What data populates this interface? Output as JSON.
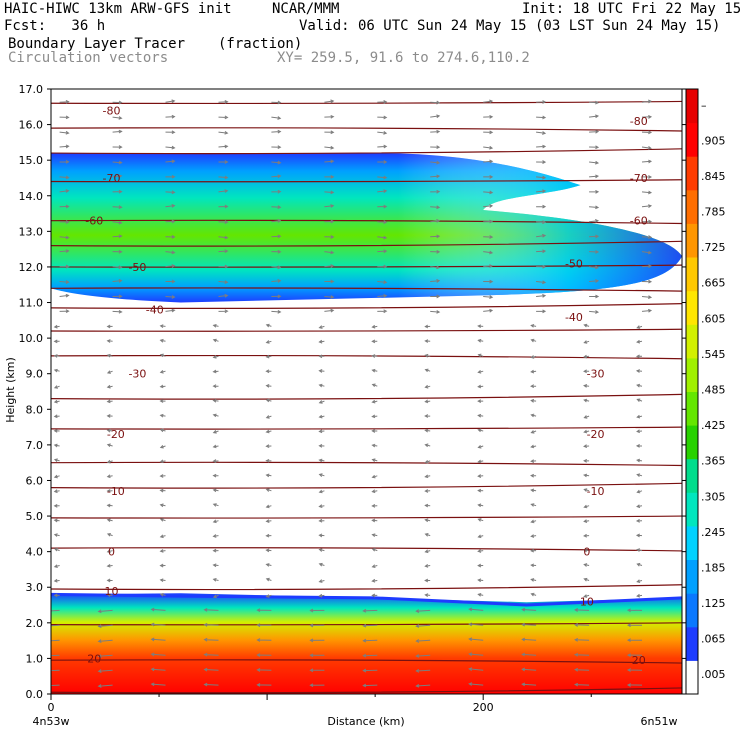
{
  "header": {
    "model": "HAIC-HIWC 13km ARW-GFS init",
    "org": "NCAR/MMM",
    "init": "Init: 18 UTC Fri 22 May 15",
    "fcst": "Fcst:   36 h",
    "valid": "Valid: 06 UTC Sun 24 May 15 (03 LST Sun 24 May 15)",
    "field": "Boundary Layer Tracer",
    "units": "(fraction)",
    "field2": "Circulation vectors",
    "xy": "XY= 259.5, 91.6 to 274.6,110.2"
  },
  "chart_data": {
    "type": "heatmap",
    "title": "Boundary Layer Tracer",
    "units": "(fraction)",
    "xlabel": "Distance (km)",
    "ylabel": "Height (km)",
    "xlim": [
      0,
      292
    ],
    "ylim": [
      0,
      17
    ],
    "x_ticks": [
      {
        "value": 0,
        "label": "0"
      },
      {
        "value": 200,
        "label": "200"
      }
    ],
    "x_end_labels": {
      "left": "4n53w",
      "right": "6n51w"
    },
    "y_ticks": [
      "0.0",
      "1.0",
      "2.0",
      "3.0",
      "4.0",
      "5.0",
      "6.0",
      "7.0",
      "8.0",
      "9.0",
      "10.0",
      "11.0",
      "12.0",
      "13.0",
      "14.0",
      "15.0",
      "16.0",
      "17.0"
    ],
    "colorbar": {
      "labels": [
        ".005",
        ".065",
        ".125",
        ".185",
        ".245",
        ".305",
        ".365",
        ".425",
        ".485",
        ".545",
        ".605",
        ".665",
        ".725",
        ".785",
        ".845",
        ".905",
        "–"
      ],
      "colors": [
        "#ffffff",
        "#1e3cff",
        "#0a78ff",
        "#00a0ff",
        "#00d2ff",
        "#00e6be",
        "#00dc8c",
        "#28d200",
        "#64e600",
        "#a0f000",
        "#d2f000",
        "#ffe600",
        "#ffc800",
        "#ff9600",
        "#ff6e00",
        "#ff3c00",
        "#ff0000",
        "#e60000"
      ]
    },
    "boundary_layer_region": {
      "top_km_at_x": [
        [
          0,
          2.8
        ],
        [
          60,
          2.75
        ],
        [
          150,
          2.7
        ],
        [
          220,
          2.5
        ],
        [
          292,
          2.7
        ]
      ],
      "value_profile": [
        [
          0,
          0.95
        ],
        [
          1.0,
          0.9
        ],
        [
          1.5,
          0.75
        ],
        [
          2.0,
          0.55
        ],
        [
          2.4,
          0.3
        ],
        [
          2.8,
          0.05
        ]
      ]
    },
    "upper_plume": {
      "base_km": 11.0,
      "top_km": 15.2,
      "x_tip_km": 292,
      "peak_value": 0.4
    },
    "isotherm_labels": [
      {
        "label": "-80",
        "x": 28,
        "y": 16.4
      },
      {
        "label": "-80",
        "x": 272,
        "y": 16.1
      },
      {
        "label": "-70",
        "x": 28,
        "y": 14.5
      },
      {
        "label": "-70",
        "x": 272,
        "y": 14.5
      },
      {
        "label": "-60",
        "x": 20,
        "y": 13.3
      },
      {
        "label": "-60",
        "x": 272,
        "y": 13.3
      },
      {
        "label": "-50",
        "x": 40,
        "y": 12.0
      },
      {
        "label": "-50",
        "x": 242,
        "y": 12.1
      },
      {
        "label": "-40",
        "x": 48,
        "y": 10.8
      },
      {
        "label": "-40",
        "x": 242,
        "y": 10.6
      },
      {
        "label": "-30",
        "x": 40,
        "y": 9.0
      },
      {
        "label": "-30",
        "x": 252,
        "y": 9.0
      },
      {
        "label": "-20",
        "x": 30,
        "y": 7.3
      },
      {
        "label": "-20",
        "x": 252,
        "y": 7.3
      },
      {
        "label": "-10",
        "x": 30,
        "y": 5.7
      },
      {
        "label": "-10",
        "x": 252,
        "y": 5.7
      },
      {
        "label": "0",
        "x": 28,
        "y": 4.0
      },
      {
        "label": "0",
        "x": 248,
        "y": 4.0
      },
      {
        "label": "10",
        "x": 28,
        "y": 2.9
      },
      {
        "label": "10",
        "x": 248,
        "y": 2.6
      },
      {
        "label": "20",
        "x": 20,
        "y": 1.0
      },
      {
        "label": "20",
        "x": 272,
        "y": 0.95
      }
    ]
  }
}
